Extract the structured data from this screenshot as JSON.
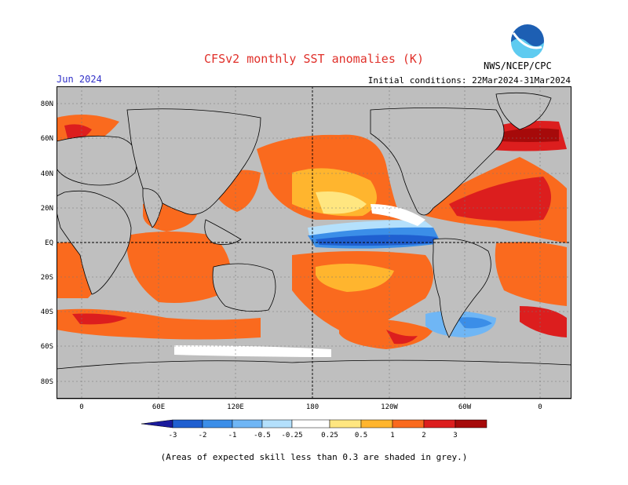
{
  "header": {
    "title": "CFSv2 monthly SST anomalies (K)",
    "month": "Jun 2024",
    "initial_conditions": "Initial conditions: 22Mar2024-31Mar2024",
    "agency": "NWS/NCEP/CPC",
    "logo_text": "NOAA"
  },
  "map": {
    "lat_labels": [
      "80N",
      "60N",
      "40N",
      "20N",
      "EQ",
      "20S",
      "40S",
      "60S",
      "80S"
    ],
    "lon_labels": [
      "0",
      "60E",
      "120E",
      "180",
      "120W",
      "60W",
      "0"
    ],
    "land_color": "#bfbfbf",
    "lowskill_color": "#bebebe"
  },
  "colorbar": {
    "labels": [
      "-3",
      "-2",
      "-1",
      "-0.5",
      "-0.25",
      "0.25",
      "0.5",
      "1",
      "2",
      "3"
    ],
    "colors": [
      "#1a1a9c",
      "#1f5fd0",
      "#3b8ee8",
      "#6fb6f5",
      "#b4e0fc",
      "#ffffff",
      "#ffe680",
      "#ffb52e",
      "#fa6a1e",
      "#dc1e1e",
      "#a60a0a",
      "#7a4c3a"
    ]
  },
  "footer": {
    "note": "(Areas of expected skill less than 0.3 are shaded in grey.)"
  }
}
